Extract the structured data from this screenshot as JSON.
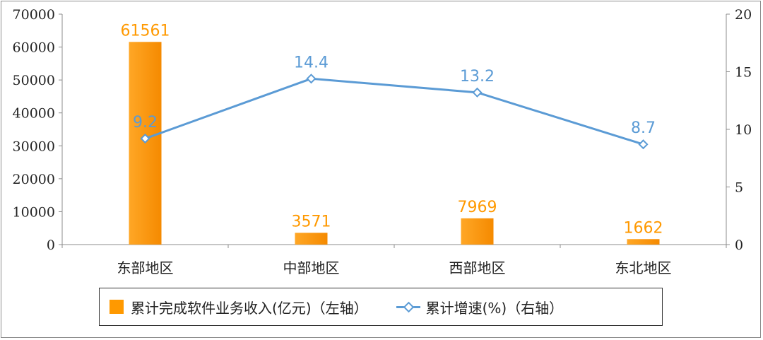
{
  "chart_data": {
    "type": "bar",
    "categories": [
      "东部地区",
      "中部地区",
      "西部地区",
      "东北地区"
    ],
    "series": [
      {
        "name": "累计完成软件业务收入(亿元)（左轴）",
        "type": "bar",
        "axis": "left",
        "values": [
          61561,
          3571,
          7969,
          1662
        ],
        "labels": [
          "61561",
          "3571",
          "7969",
          "1662"
        ],
        "color": "#ff9900"
      },
      {
        "name": "累计增速(%)（右轴）",
        "type": "line",
        "axis": "right",
        "values": [
          9.2,
          14.4,
          13.2,
          8.7
        ],
        "labels": [
          "9.2",
          "14.4",
          "13.2",
          "8.7"
        ],
        "color": "#5b9bd5"
      }
    ],
    "y_left": {
      "ylim": [
        0,
        70000
      ],
      "ticks": [
        "0",
        "10000",
        "20000",
        "30000",
        "40000",
        "50000",
        "60000",
        "70000"
      ]
    },
    "y_right": {
      "ylim": [
        0,
        20
      ],
      "ticks": [
        "0",
        "5",
        "10",
        "15",
        "20"
      ]
    },
    "grid": false,
    "legend_position": "bottom"
  }
}
